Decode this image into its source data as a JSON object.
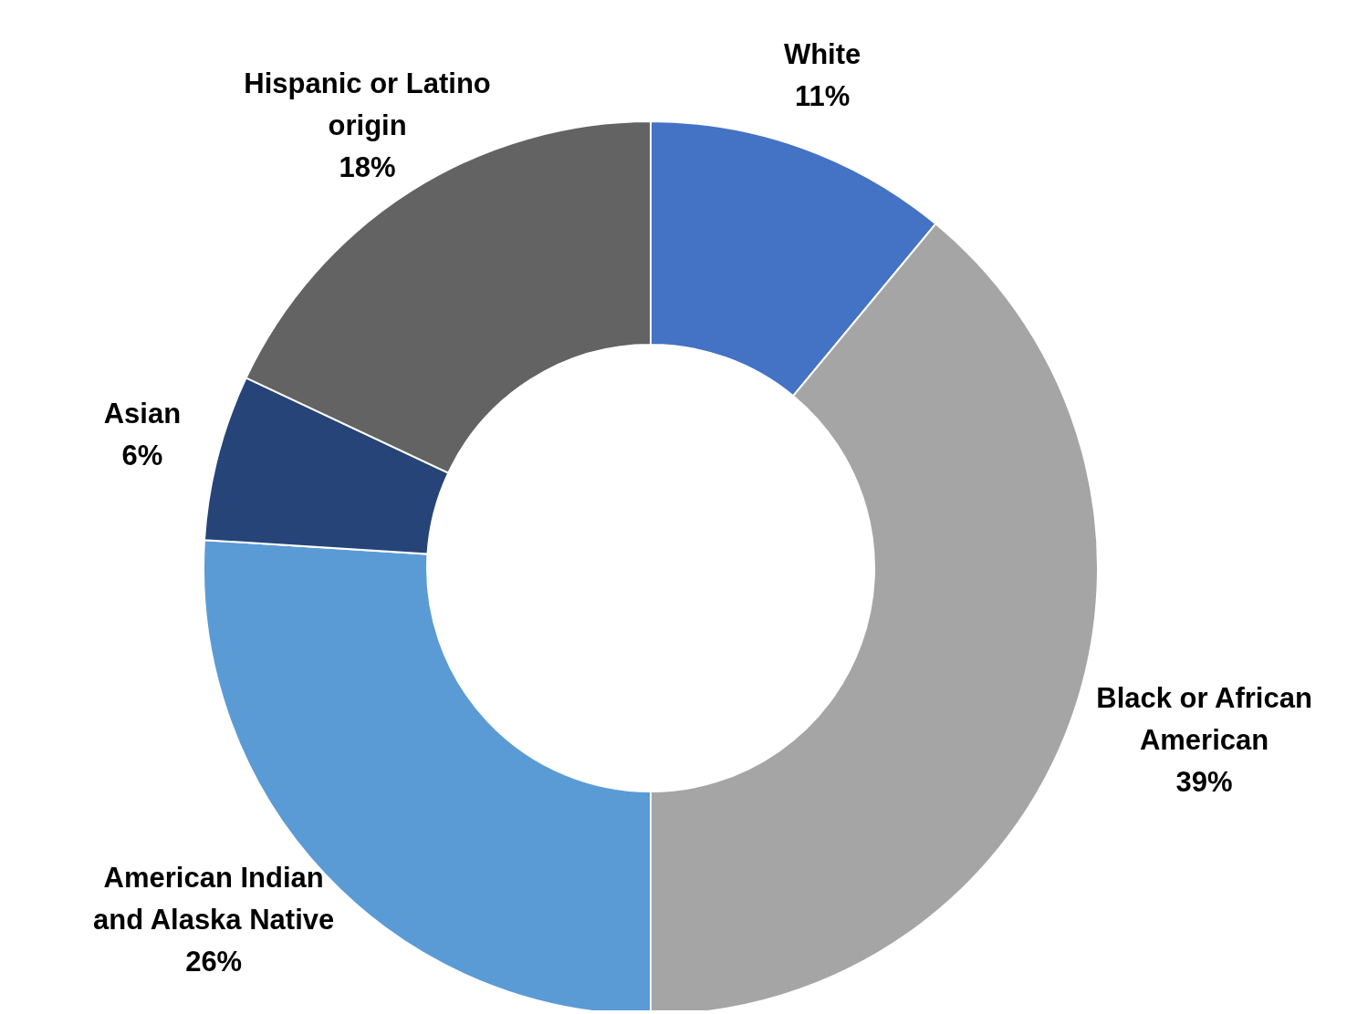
{
  "chart_data": {
    "type": "donut",
    "categories": [
      "White",
      "Black or African American",
      "American Indian and Alaska Native",
      "Asian",
      "Hispanic or Latino origin"
    ],
    "values": [
      11,
      39,
      26,
      6,
      18
    ],
    "value_labels": [
      "11%",
      "39%",
      "26%",
      "6%",
      "18%"
    ],
    "colors": [
      "#4472c4",
      "#a5a5a5",
      "#5b9bd5",
      "#264478",
      "#636363"
    ],
    "legend": false
  }
}
